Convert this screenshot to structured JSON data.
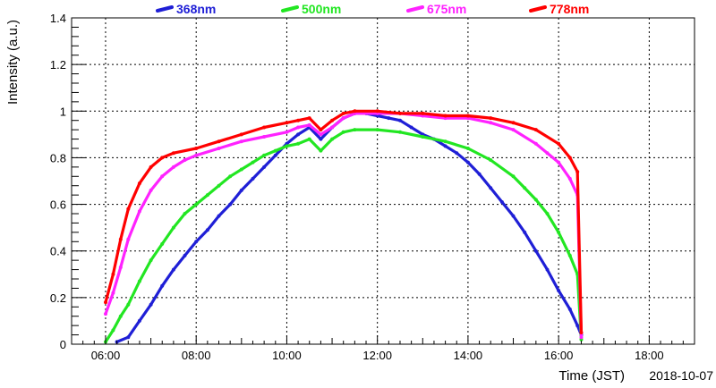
{
  "chart_data": {
    "type": "scatter",
    "title": "",
    "xlabel": "Time (JST)",
    "ylabel": "Intensity (a.u.)",
    "date": "2018-10-07",
    "xlim": [
      "05:15",
      "19:00"
    ],
    "ylim": [
      0,
      1.4
    ],
    "xticks": [
      "06:00",
      "08:00",
      "10:00",
      "12:00",
      "14:00",
      "16:00",
      "18:00"
    ],
    "yticks": [
      "0",
      "0.2",
      "0.4",
      "0.6",
      "0.8",
      "1",
      "1.2",
      "1.4"
    ],
    "grid": true,
    "legend_position": "top",
    "series": [
      {
        "name": "368nm",
        "color": "#1f1fd6",
        "points": [
          [
            "06:15",
            0.01
          ],
          [
            "06:30",
            0.03
          ],
          [
            "06:45",
            0.1
          ],
          [
            "07:00",
            0.17
          ],
          [
            "07:15",
            0.25
          ],
          [
            "07:30",
            0.32
          ],
          [
            "07:45",
            0.38
          ],
          [
            "08:00",
            0.44
          ],
          [
            "08:15",
            0.49
          ],
          [
            "08:30",
            0.55
          ],
          [
            "08:45",
            0.6
          ],
          [
            "09:00",
            0.66
          ],
          [
            "09:15",
            0.71
          ],
          [
            "09:30",
            0.76
          ],
          [
            "09:45",
            0.81
          ],
          [
            "10:00",
            0.86
          ],
          [
            "10:15",
            0.9
          ],
          [
            "10:30",
            0.93
          ],
          [
            "10:45",
            0.88
          ],
          [
            "11:00",
            0.93
          ],
          [
            "11:15",
            0.97
          ],
          [
            "11:30",
            0.99
          ],
          [
            "11:45",
            0.99
          ],
          [
            "12:00",
            0.98
          ],
          [
            "12:15",
            0.97
          ],
          [
            "12:30",
            0.96
          ],
          [
            "12:45",
            0.93
          ],
          [
            "13:00",
            0.9
          ],
          [
            "13:15",
            0.88
          ],
          [
            "13:30",
            0.85
          ],
          [
            "13:45",
            0.82
          ],
          [
            "14:00",
            0.78
          ],
          [
            "14:15",
            0.73
          ],
          [
            "14:30",
            0.67
          ],
          [
            "14:45",
            0.61
          ],
          [
            "15:00",
            0.55
          ],
          [
            "15:15",
            0.48
          ],
          [
            "15:30",
            0.4
          ],
          [
            "15:45",
            0.32
          ],
          [
            "16:00",
            0.23
          ],
          [
            "16:15",
            0.15
          ],
          [
            "16:25",
            0.08
          ],
          [
            "16:30",
            0.04
          ]
        ]
      },
      {
        "name": "500nm",
        "color": "#22e622",
        "points": [
          [
            "06:00",
            0.01
          ],
          [
            "06:10",
            0.06
          ],
          [
            "06:20",
            0.12
          ],
          [
            "06:30",
            0.17
          ],
          [
            "06:45",
            0.27
          ],
          [
            "07:00",
            0.36
          ],
          [
            "07:15",
            0.43
          ],
          [
            "07:30",
            0.5
          ],
          [
            "07:45",
            0.56
          ],
          [
            "08:00",
            0.6
          ],
          [
            "08:15",
            0.64
          ],
          [
            "08:30",
            0.68
          ],
          [
            "08:45",
            0.72
          ],
          [
            "09:00",
            0.75
          ],
          [
            "09:15",
            0.78
          ],
          [
            "09:30",
            0.81
          ],
          [
            "09:45",
            0.83
          ],
          [
            "10:00",
            0.85
          ],
          [
            "10:15",
            0.86
          ],
          [
            "10:30",
            0.88
          ],
          [
            "10:45",
            0.83
          ],
          [
            "11:00",
            0.88
          ],
          [
            "11:15",
            0.91
          ],
          [
            "11:30",
            0.92
          ],
          [
            "12:00",
            0.92
          ],
          [
            "12:30",
            0.91
          ],
          [
            "13:00",
            0.89
          ],
          [
            "13:30",
            0.87
          ],
          [
            "14:00",
            0.84
          ],
          [
            "14:30",
            0.79
          ],
          [
            "15:00",
            0.72
          ],
          [
            "15:15",
            0.67
          ],
          [
            "15:30",
            0.62
          ],
          [
            "15:45",
            0.56
          ],
          [
            "16:00",
            0.48
          ],
          [
            "16:15",
            0.38
          ],
          [
            "16:25",
            0.3
          ],
          [
            "16:30",
            0.02
          ]
        ]
      },
      {
        "name": "675nm",
        "color": "#ff22ff",
        "points": [
          [
            "06:00",
            0.13
          ],
          [
            "06:10",
            0.22
          ],
          [
            "06:20",
            0.33
          ],
          [
            "06:30",
            0.45
          ],
          [
            "06:45",
            0.57
          ],
          [
            "07:00",
            0.66
          ],
          [
            "07:15",
            0.72
          ],
          [
            "07:30",
            0.76
          ],
          [
            "07:45",
            0.79
          ],
          [
            "08:00",
            0.81
          ],
          [
            "08:30",
            0.84
          ],
          [
            "09:00",
            0.87
          ],
          [
            "09:30",
            0.89
          ],
          [
            "10:00",
            0.91
          ],
          [
            "10:15",
            0.93
          ],
          [
            "10:30",
            0.94
          ],
          [
            "10:45",
            0.9
          ],
          [
            "11:00",
            0.93
          ],
          [
            "11:15",
            0.97
          ],
          [
            "11:30",
            0.99
          ],
          [
            "12:00",
            0.99
          ],
          [
            "12:30",
            0.99
          ],
          [
            "13:00",
            0.98
          ],
          [
            "13:30",
            0.97
          ],
          [
            "14:00",
            0.97
          ],
          [
            "14:30",
            0.95
          ],
          [
            "15:00",
            0.92
          ],
          [
            "15:30",
            0.86
          ],
          [
            "15:45",
            0.82
          ],
          [
            "16:00",
            0.78
          ],
          [
            "16:15",
            0.71
          ],
          [
            "16:25",
            0.64
          ],
          [
            "16:30",
            0.03
          ]
        ]
      },
      {
        "name": "778nm",
        "color": "#ff0000",
        "points": [
          [
            "06:00",
            0.18
          ],
          [
            "06:10",
            0.3
          ],
          [
            "06:20",
            0.45
          ],
          [
            "06:30",
            0.58
          ],
          [
            "06:45",
            0.69
          ],
          [
            "07:00",
            0.76
          ],
          [
            "07:15",
            0.8
          ],
          [
            "07:30",
            0.82
          ],
          [
            "08:00",
            0.84
          ],
          [
            "08:30",
            0.87
          ],
          [
            "09:00",
            0.9
          ],
          [
            "09:30",
            0.93
          ],
          [
            "10:00",
            0.95
          ],
          [
            "10:15",
            0.96
          ],
          [
            "10:30",
            0.97
          ],
          [
            "10:45",
            0.92
          ],
          [
            "11:00",
            0.96
          ],
          [
            "11:15",
            0.99
          ],
          [
            "11:30",
            1.0
          ],
          [
            "12:00",
            1.0
          ],
          [
            "12:30",
            0.99
          ],
          [
            "13:00",
            0.99
          ],
          [
            "13:30",
            0.98
          ],
          [
            "14:00",
            0.98
          ],
          [
            "14:30",
            0.97
          ],
          [
            "15:00",
            0.95
          ],
          [
            "15:30",
            0.92
          ],
          [
            "16:00",
            0.86
          ],
          [
            "16:15",
            0.8
          ],
          [
            "16:25",
            0.74
          ],
          [
            "16:30",
            0.05
          ]
        ]
      }
    ]
  }
}
